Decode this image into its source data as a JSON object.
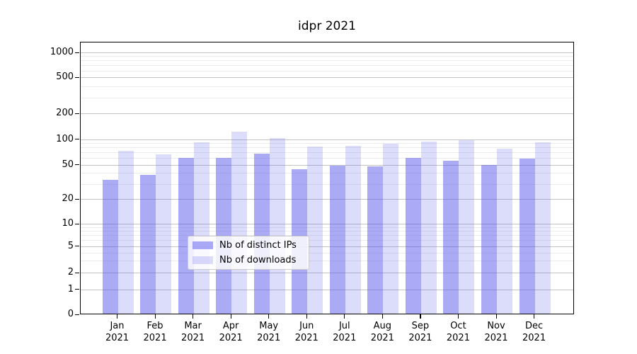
{
  "chart_data": {
    "type": "bar",
    "title": "idpr 2021",
    "categories": [
      "Jan 2021",
      "Feb 2021",
      "Mar 2021",
      "Apr 2021",
      "May 2021",
      "Jun 2021",
      "Jul 2021",
      "Aug 2021",
      "Sep 2021",
      "Oct 2021",
      "Nov 2021",
      "Dec 2021"
    ],
    "series": [
      {
        "name": "Nb of distinct IPs",
        "values": [
          34,
          39,
          61,
          61,
          69,
          45,
          50,
          49,
          61,
          57,
          51,
          60
        ],
        "fill": "rgba(80,80,235,0.48)",
        "approx_hex": "#a9a9f4"
      },
      {
        "name": "Nb of downloads",
        "values": [
          74,
          67,
          93,
          125,
          106,
          84,
          85,
          91,
          95,
          100,
          79,
          93
        ],
        "fill": "rgba(80,80,235,0.20)",
        "approx_hex": "#dcdcfa"
      }
    ],
    "xlabel": "",
    "ylabel": "",
    "yscale": "symlog",
    "yticks": [
      0,
      1,
      2,
      5,
      10,
      20,
      50,
      100,
      200,
      500,
      1000
    ],
    "yminor": [
      3,
      4,
      6,
      7,
      8,
      9,
      30,
      40,
      60,
      70,
      80,
      90,
      300,
      400,
      600,
      700,
      800,
      900
    ],
    "ylim": [
      0,
      1300
    ],
    "grid": true,
    "legend": {
      "position": "lower center",
      "items": [
        "Nb of distinct IPs",
        "Nb of downloads"
      ]
    }
  }
}
